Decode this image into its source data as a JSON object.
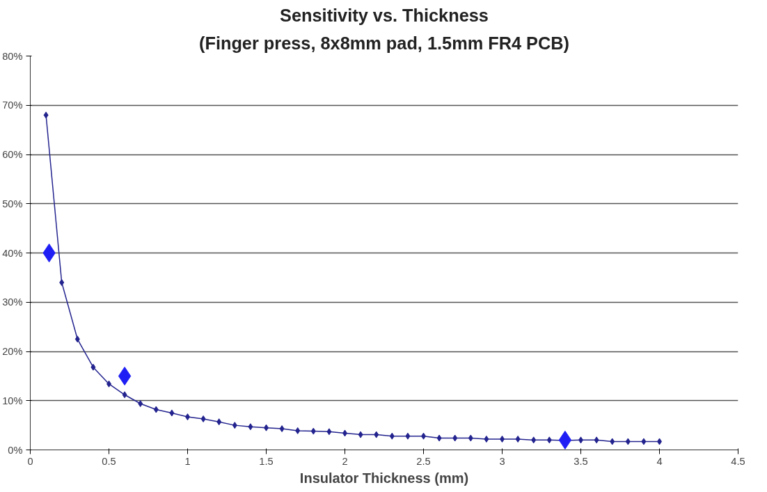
{
  "chart_data": {
    "type": "line",
    "title": "Sensitivity vs. Thickness",
    "subtitle": "(Finger press, 8x8mm pad, 1.5mm FR4 PCB)",
    "xlabel": "Insulator Thickness (mm)",
    "xlim": [
      0,
      4.5
    ],
    "xticks": [
      0,
      0.5,
      1,
      1.5,
      2,
      2.5,
      3,
      3.5,
      4,
      4.5
    ],
    "ylim": [
      0,
      80
    ],
    "yticks": [
      {
        "value": 0,
        "label": "0%"
      },
      {
        "value": 10,
        "label": "10%"
      },
      {
        "value": 20,
        "label": "20%"
      },
      {
        "value": 30,
        "label": "30%"
      },
      {
        "value": 40,
        "label": "40%"
      },
      {
        "value": 50,
        "label": "50%"
      },
      {
        "value": 60,
        "label": "60%"
      },
      {
        "value": 70,
        "label": "70%"
      },
      {
        "value": 80,
        "label": "80%"
      }
    ],
    "grid": "y",
    "series": [
      {
        "marker": "diamond",
        "color": "#23238f",
        "x": [
          0.1,
          0.2,
          0.3,
          0.4,
          0.5,
          0.6,
          0.7,
          0.8,
          0.9,
          1.0,
          1.1,
          1.2,
          1.3,
          1.4,
          1.5,
          1.6,
          1.7,
          1.8,
          1.9,
          2.0,
          2.1,
          2.2,
          2.3,
          2.4,
          2.5,
          2.6,
          2.7,
          2.8,
          2.9,
          3.0,
          3.1,
          3.2,
          3.3,
          3.4,
          3.5,
          3.6,
          3.7,
          3.8,
          3.9,
          4.0
        ],
        "values": [
          68,
          34,
          22.5,
          16.8,
          13.4,
          11.2,
          9.4,
          8.2,
          7.5,
          6.7,
          6.3,
          5.7,
          5.0,
          4.7,
          4.5,
          4.3,
          3.9,
          3.8,
          3.7,
          3.4,
          3.1,
          3.1,
          2.8,
          2.8,
          2.8,
          2.4,
          2.4,
          2.4,
          2.2,
          2.2,
          2.2,
          2.0,
          2.0,
          1.9,
          2.0,
          2.0,
          1.7,
          1.7,
          1.7,
          1.7
        ]
      },
      {
        "type": "scatter",
        "marker": "diamond",
        "color": "#1f1ff5",
        "x": [
          0.12,
          0.6,
          3.4
        ],
        "values": [
          40,
          15,
          2
        ]
      }
    ]
  }
}
